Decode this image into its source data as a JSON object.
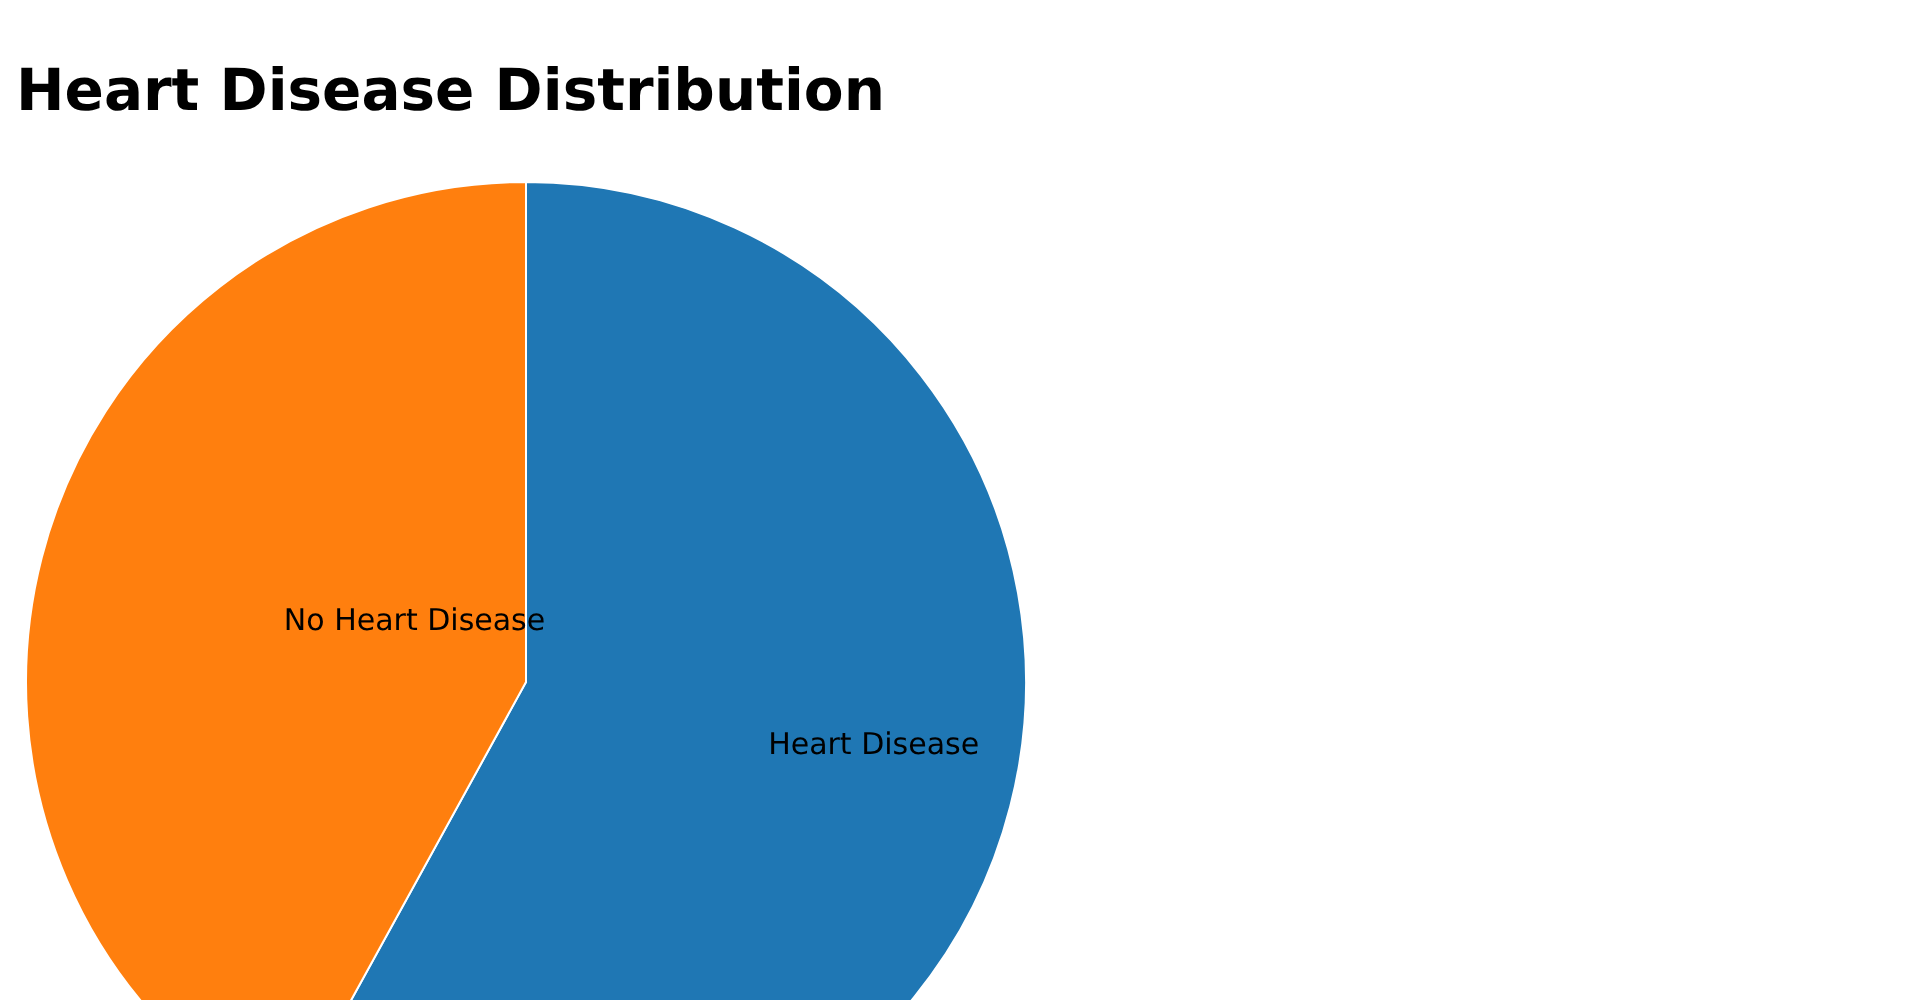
{
  "chart_data": {
    "type": "pie",
    "title": "Heart Disease Distribution",
    "categories": [
      "Heart Disease",
      "No Heart Disease"
    ],
    "values": [
      58,
      42
    ],
    "colors": [
      "#1f77b4",
      "#ff7f0e"
    ],
    "legend": false
  }
}
